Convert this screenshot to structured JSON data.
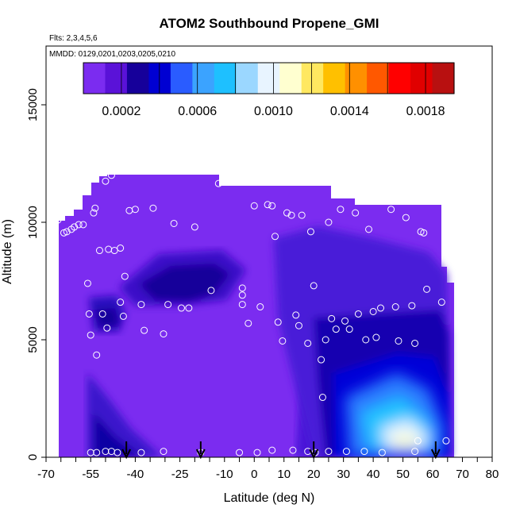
{
  "chart_data": {
    "type": "heatmap",
    "title": "ATOM2 Southbound Propene_GMI",
    "annotations": [
      "Flts: 2,3,4,5,6",
      "MMDD: 0129,0201,0203,0205,0210"
    ],
    "xlabel": "Latitude (deg N)",
    "ylabel": "Altitude (m)",
    "xlim": [
      -70,
      80
    ],
    "ylim": [
      0,
      17500
    ],
    "x_ticks": [
      -70,
      -55,
      -40,
      -25,
      -10,
      0,
      10,
      20,
      30,
      40,
      50,
      60,
      70,
      80
    ],
    "x_tick_labels": [
      "-70",
      "-55",
      "-40",
      "-25",
      "-10",
      "0",
      "10",
      "20",
      "30",
      "40",
      "50",
      "60",
      "70",
      "80"
    ],
    "y_ticks": [
      0,
      5000,
      10000,
      15000
    ],
    "y_tick_labels": [
      "0",
      "5000",
      "10000",
      "15000"
    ],
    "colorbar": {
      "range": [
        0,
        0.00195
      ],
      "tick_values": [
        0.0002,
        0.0006,
        0.001,
        0.0014,
        0.0018
      ],
      "tick_labels": [
        "0.0002",
        "0.0006",
        "0.0010",
        "0.0014",
        "0.0018"
      ],
      "colors": [
        "#7b2cf0",
        "#5a12d8",
        "#16009a",
        "#0000d2",
        "#2a5cff",
        "#3ba3ff",
        "#1ec0ff",
        "#9bd7ff",
        "#e8f4ff",
        "#ffffd0",
        "#ffe860",
        "#ffc000",
        "#ff9000",
        "#ff5800",
        "#ff0000",
        "#e00000",
        "#b81010"
      ]
    },
    "flight_boundary_latitudes": [
      -43,
      -18,
      20,
      61
    ],
    "sample_points": [
      [
        -67.5,
        5600
      ],
      [
        -67,
        5150
      ],
      [
        -66,
        10100
      ],
      [
        -64,
        9550
      ],
      [
        -63,
        9600
      ],
      [
        -61.5,
        9700
      ],
      [
        -60.5,
        9800
      ],
      [
        -59,
        9900
      ],
      [
        -57.5,
        9900
      ],
      [
        -56,
        7400
      ],
      [
        -55.5,
        6100
      ],
      [
        -55,
        5200
      ],
      [
        -54,
        10400
      ],
      [
        -53.5,
        10600
      ],
      [
        -53,
        4350
      ],
      [
        -52,
        8800
      ],
      [
        -51,
        6100
      ],
      [
        -50,
        11750
      ],
      [
        -49.5,
        5500
      ],
      [
        -49,
        8850
      ],
      [
        -48,
        12000
      ],
      [
        -47,
        8800
      ],
      [
        -46,
        12200
      ],
      [
        -45,
        6600
      ],
      [
        -45,
        8900
      ],
      [
        -44,
        6000
      ],
      [
        -43.5,
        7700
      ],
      [
        -42,
        10500
      ],
      [
        -40,
        10550
      ],
      [
        -38,
        6500
      ],
      [
        -37,
        5400
      ],
      [
        -34,
        10600
      ],
      [
        -30.5,
        5250
      ],
      [
        -29,
        6500
      ],
      [
        -27,
        9950
      ],
      [
        -24.5,
        6350
      ],
      [
        -22,
        6350
      ],
      [
        -20,
        9800
      ],
      [
        -14.5,
        7100
      ],
      [
        -12,
        11650
      ],
      [
        -10.5,
        11750
      ],
      [
        -9,
        11900
      ],
      [
        -7,
        11950
      ],
      [
        -5.5,
        12000
      ],
      [
        -5,
        11900
      ],
      [
        -4,
        7200
      ],
      [
        -4,
        6500
      ],
      [
        -4,
        6900
      ],
      [
        -2,
        5700
      ],
      [
        0,
        10700
      ],
      [
        2,
        6400
      ],
      [
        4.5,
        10750
      ],
      [
        6,
        10700
      ],
      [
        7,
        9400
      ],
      [
        8,
        5750
      ],
      [
        9.5,
        4950
      ],
      [
        11,
        10400
      ],
      [
        12.5,
        10300
      ],
      [
        14,
        6050
      ],
      [
        15,
        5600
      ],
      [
        16,
        10300
      ],
      [
        18,
        4850
      ],
      [
        19,
        9600
      ],
      [
        20,
        7300
      ],
      [
        22.5,
        4150
      ],
      [
        23,
        2550
      ],
      [
        24,
        5000
      ],
      [
        25,
        10000
      ],
      [
        26,
        5900
      ],
      [
        27.5,
        5450
      ],
      [
        29,
        10550
      ],
      [
        30.5,
        5800
      ],
      [
        32,
        5450
      ],
      [
        34,
        10400
      ],
      [
        35,
        6100
      ],
      [
        37.5,
        5000
      ],
      [
        38.5,
        9700
      ],
      [
        40,
        6200
      ],
      [
        41,
        5100
      ],
      [
        42.5,
        6350
      ],
      [
        46,
        10550
      ],
      [
        47.5,
        6400
      ],
      [
        48.5,
        4950
      ],
      [
        51,
        10200
      ],
      [
        53,
        6450
      ],
      [
        54,
        4850
      ],
      [
        56,
        9600
      ],
      [
        57,
        9550
      ],
      [
        58,
        7150
      ],
      [
        59,
        11300
      ],
      [
        61.5,
        11250
      ],
      [
        63,
        6600
      ],
      [
        64.5,
        700
      ],
      [
        -67.5,
        250
      ],
      [
        -55,
        200
      ],
      [
        -53,
        200
      ],
      [
        -50,
        250
      ],
      [
        -48,
        250
      ],
      [
        -46,
        200
      ],
      [
        -38,
        200
      ],
      [
        -30.5,
        250
      ],
      [
        -18,
        200
      ],
      [
        -5,
        200
      ],
      [
        1,
        200
      ],
      [
        6,
        300
      ],
      [
        13,
        300
      ],
      [
        18,
        250
      ],
      [
        20.5,
        200
      ],
      [
        25,
        250
      ],
      [
        31,
        250
      ],
      [
        37,
        250
      ],
      [
        43,
        200
      ],
      [
        54,
        250
      ],
      [
        55,
        700
      ]
    ]
  }
}
